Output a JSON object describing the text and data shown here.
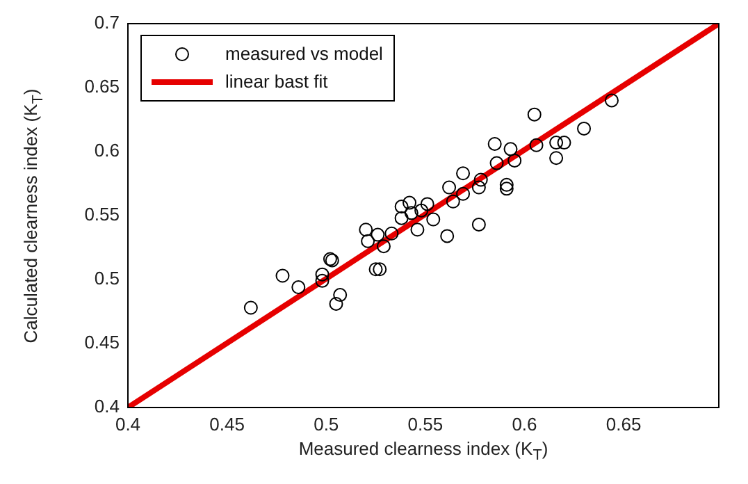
{
  "chart_data": {
    "type": "scatter",
    "xlabel": "Measured clearness index (K$_{T}$)",
    "ylabel": "Calculated clearness index (K$_{T}$)",
    "xlim": [
      0.4,
      0.698
    ],
    "ylim": [
      0.4,
      0.7
    ],
    "xticks": [
      0.4,
      0.45,
      0.5,
      0.55,
      0.6,
      0.65
    ],
    "yticks": [
      0.4,
      0.45,
      0.5,
      0.55,
      0.6,
      0.65,
      0.7
    ],
    "grid": false,
    "legend": "top left",
    "series": [
      {
        "name": "measured vs model",
        "marker": "circle",
        "color": "#000000",
        "x": [
          0.462,
          0.478,
          0.486,
          0.498,
          0.498,
          0.502,
          0.503,
          0.507,
          0.505,
          0.52,
          0.521,
          0.526,
          0.525,
          0.527,
          0.529,
          0.533,
          0.538,
          0.538,
          0.542,
          0.543,
          0.546,
          0.548,
          0.551,
          0.554,
          0.561,
          0.562,
          0.564,
          0.569,
          0.569,
          0.577,
          0.577,
          0.578,
          0.586,
          0.585,
          0.591,
          0.591,
          0.593,
          0.595,
          0.606,
          0.616,
          0.616,
          0.62,
          0.644,
          0.63,
          0.605
        ],
        "values": [
          0.478,
          0.503,
          0.494,
          0.504,
          0.499,
          0.516,
          0.515,
          0.488,
          0.481,
          0.539,
          0.53,
          0.535,
          0.508,
          0.508,
          0.526,
          0.536,
          0.548,
          0.557,
          0.56,
          0.552,
          0.539,
          0.554,
          0.559,
          0.547,
          0.534,
          0.572,
          0.561,
          0.567,
          0.583,
          0.543,
          0.572,
          0.578,
          0.591,
          0.606,
          0.574,
          0.571,
          0.602,
          0.593,
          0.605,
          0.595,
          0.607,
          0.607,
          0.64,
          0.618,
          0.629
        ]
      },
      {
        "name": "linear bast fit",
        "type": "line",
        "line_style": "solid",
        "color": "#e60000",
        "x": [
          0.4,
          0.698
        ],
        "values": [
          0.4,
          0.7
        ]
      }
    ]
  }
}
